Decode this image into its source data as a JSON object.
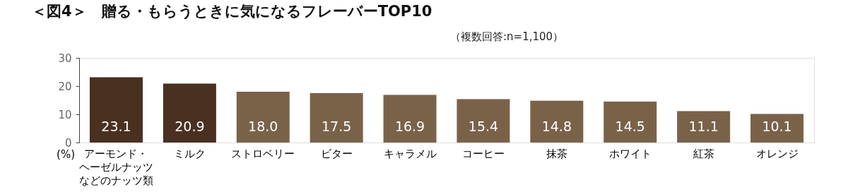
{
  "chart_data": {
    "type": "bar",
    "title": "＜図4＞　贈る・もらうときに気になるフレーバーTOP10",
    "subtitle": "（複数回答:n=1,100）",
    "categories": [
      "アーモンド・ヘーゼルナッツなどのナッツ類",
      "ミルク",
      "ストロベリー",
      "ビター",
      "キャラメル",
      "コーヒー",
      "抹茶",
      "ホワイト",
      "紅茶",
      "オレンジ"
    ],
    "values": [
      23.1,
      20.9,
      18.0,
      17.5,
      16.9,
      15.4,
      14.8,
      14.5,
      11.1,
      10.1
    ],
    "colors": [
      "#4a3020",
      "#4a3020",
      "#7a6249",
      "#7a6249",
      "#7a6249",
      "#7a6249",
      "#7a6249",
      "#7a6249",
      "#7a6249",
      "#7a6249"
    ],
    "value_labels": [
      "23.1",
      "20.9",
      "18.0",
      "17.5",
      "16.9",
      "15.4",
      "14.8",
      "14.5",
      "11.1",
      "10.1"
    ],
    "ylim": [
      0,
      30
    ],
    "yticks": [
      0,
      10,
      20,
      30
    ],
    "grid": false,
    "annotations": [
      "(%)"
    ]
  }
}
